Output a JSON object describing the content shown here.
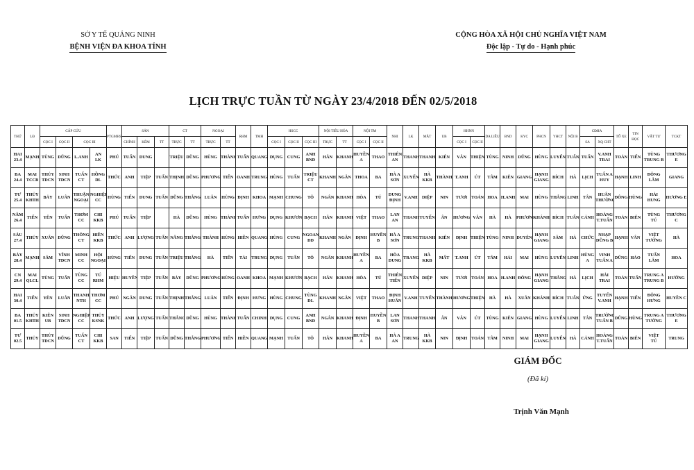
{
  "header_left": {
    "line1": "SỞ Y TẾ QUẢNG NINH",
    "line2": "BỆNH VIỆN ĐA KHOA TỈNH"
  },
  "header_right": {
    "line1": "CỘNG HÒA XÃ HỘI CHỦ NGHĨA VIỆT NAM",
    "line2": "Độc lập - Tự do - Hạnh phúc"
  },
  "title": "LỊCH TRỰC TUẦN TỪ NGÀY 23/4/2018 ĐẾN 02/5/2018",
  "table": {
    "header_top": [
      {
        "label": "THỨ",
        "colspan": 1,
        "rowspan": 2
      },
      {
        "label": "LĐ",
        "colspan": 1,
        "rowspan": 2
      },
      {
        "label": "CẤP CỨU",
        "colspan": 4,
        "rowspan": 1
      },
      {
        "label": "PTGMHS",
        "colspan": 1,
        "rowspan": 2
      },
      {
        "label": "SẢN",
        "colspan": 3,
        "rowspan": 1
      },
      {
        "label": "CT",
        "colspan": 2,
        "rowspan": 1
      },
      {
        "label": "NGOẠI",
        "colspan": 2,
        "rowspan": 1
      },
      {
        "label": "RHM",
        "colspan": 1,
        "rowspan": 2
      },
      {
        "label": "TMH",
        "colspan": 1,
        "rowspan": 2
      },
      {
        "label": "HSCC",
        "colspan": 3,
        "rowspan": 1
      },
      {
        "label": "NỘI TIÊU HÓA",
        "colspan": 2,
        "rowspan": 1
      },
      {
        "label": "NỘI TM",
        "colspan": 2,
        "rowspan": 1
      },
      {
        "label": "NHI",
        "colspan": 1,
        "rowspan": 2
      },
      {
        "label": "LK",
        "colspan": 1,
        "rowspan": 2
      },
      {
        "label": "MẮT",
        "colspan": 1,
        "rowspan": 2
      },
      {
        "label": "UB",
        "colspan": 1,
        "rowspan": 2
      },
      {
        "label": "HHNN",
        "colspan": 2,
        "rowspan": 1
      },
      {
        "label": "DA LIỄU",
        "colspan": 1,
        "rowspan": 2
      },
      {
        "label": "BND",
        "colspan": 1,
        "rowspan": 2
      },
      {
        "label": "KYC",
        "colspan": 1,
        "rowspan": 2
      },
      {
        "label": "PHCN",
        "colspan": 1,
        "rowspan": 2
      },
      {
        "label": "YHCT",
        "colspan": 1,
        "rowspan": 2
      },
      {
        "label": "NỘI B",
        "colspan": 1,
        "rowspan": 2
      },
      {
        "label": "CĐHA",
        "colspan": 2,
        "rowspan": 1
      },
      {
        "label": "TỔ XE",
        "colspan": 1,
        "rowspan": 2
      },
      {
        "label": "TIN\nHỌC",
        "colspan": 1,
        "rowspan": 2
      },
      {
        "label": "VẬT TƯ",
        "colspan": 1,
        "rowspan": 2
      },
      {
        "label": "TCKT",
        "colspan": 1,
        "rowspan": 2
      }
    ],
    "header_sub": [
      {
        "label": "CỌC I",
        "colspan": 1
      },
      {
        "label": "CỌC II",
        "colspan": 1
      },
      {
        "label": "CỌC III",
        "colspan": 2
      },
      {
        "label": "CHÍNH",
        "colspan": 1
      },
      {
        "label": "KÈM",
        "colspan": 1
      },
      {
        "label": "TT",
        "colspan": 1
      },
      {
        "label": "TRỰC",
        "colspan": 1
      },
      {
        "label": "TT",
        "colspan": 1
      },
      {
        "label": "TRỰC",
        "colspan": 1
      },
      {
        "label": "TT",
        "colspan": 1
      },
      {
        "label": "CỌC I",
        "colspan": 1
      },
      {
        "label": "CỌC II",
        "colspan": 1
      },
      {
        "label": "CỌC III",
        "colspan": 1
      },
      {
        "label": "TRỰC",
        "colspan": 1
      },
      {
        "label": "TT",
        "colspan": 1
      },
      {
        "label": "CỌC I",
        "colspan": 1
      },
      {
        "label": "CỌC II",
        "colspan": 1
      },
      {
        "label": "CỌC I",
        "colspan": 1
      },
      {
        "label": "CỌC II",
        "colspan": 1
      },
      {
        "label": "SA",
        "colspan": 1
      },
      {
        "label": "XQ CHT",
        "colspan": 1
      }
    ],
    "rows": [
      [
        "HAI\n23.4",
        "MẠNH",
        "TÙNG",
        "DŨNG",
        "L.ANH",
        "AN\nLK",
        "PHÚ",
        "TUẤN",
        "DUNG",
        "",
        "TRIỆU",
        "DŨNG",
        "HÙNG",
        "THÀNH",
        "TUẤN",
        "QUANG",
        "DỤNG",
        "CUNG",
        "ANH\nBND",
        "HÂN",
        "KHANH",
        "HUYỀN A",
        "THAO",
        "THIÊN\nAN",
        "THANH",
        "THANH",
        "KIÊN",
        "VÂN",
        "THIỆN",
        "TÙNG",
        "NINH",
        "DŨNG",
        "HÙNG",
        "LUYẾN",
        "TUẤN",
        "TUẤN",
        "V.ANH\nTRAI",
        "TOẢN",
        "TIẾN",
        "TÙNG\nTRUNG B",
        "THƯƠNG E"
      ],
      [
        "BA\n24.4",
        "MAI\nTCCB",
        "THỦY\nTDCN",
        "SINH\nTDCN",
        "TUẤN\nCT",
        "HỒNG\nDL",
        "THỨC",
        "ANH",
        "TIỆP",
        "TUẤN",
        "THỊNH",
        "DŨNG",
        "PHƯƠNG",
        "TIẾN",
        "OANH",
        "TRUNG",
        "HÙNG",
        "TUẤN",
        "TRIỆU\nCT",
        "KHANH",
        "NGÂN",
        "THOA",
        "BA",
        "HÀ A\nSƠN",
        "XUYẾN",
        "HÀ\nKKB",
        "THÀNH",
        "T.ANH",
        "ÚT",
        "TÂM",
        "KIÊN",
        "GIANG",
        "HẠNH\nGIANG",
        "BÍCH",
        "HÀ",
        "LỊCH",
        "TUẤN A\nHUY",
        "HẠNH",
        "LINH",
        "ĐÔNG\nLÂM",
        "GIANG"
      ],
      [
        "TƯ\n25.4",
        "THỦY\nKHTH",
        "BẢY",
        "LUÂN",
        "THUẬN\nNGOẠI",
        "NGHIỆP\nCC",
        "HÙNG",
        "TIẾN",
        "DUNG",
        "TUẤN",
        "DŨNG",
        "THẮNG",
        "LUÂN",
        "HÙNG",
        "ĐỊNH",
        "KHOA",
        "MẠNH",
        "CHUNG",
        "TÔ",
        "NGÂN",
        "KHANH",
        "HÒA",
        "TÚ",
        "DUNG\nĐỊNH",
        "V.ANH",
        "DIỆP",
        "NIN",
        "TƯƠI",
        "TOẢN",
        "HOA",
        "H.ANH",
        "MAI",
        "HÙNG",
        "THẮNG",
        "LINH",
        "TÂN",
        "HUÂN\nTHƯỜNG",
        "ĐÔNG",
        "HÙNG",
        "HẢI\nHUNG",
        "HƯƠNG E"
      ],
      [
        "NĂM\n26.4",
        "TIẾN",
        "YÊN",
        "TUẤN",
        "THƠM\nCC",
        "CHI\nKKB",
        "PHÚ",
        "TUẤN",
        "TIỆP",
        "",
        "HÀ",
        "DŨNG",
        "HÙNG",
        "THÀNH",
        "TUẤN",
        "HƯNG",
        "DỤNG",
        "KHƯƠNG",
        "BẠCH",
        "HÂN",
        "KHANH",
        "VIỆT",
        "THAO",
        "LAN\nAN",
        "THANH",
        "TUYẾN",
        "ÂN",
        "HƯƠNG",
        "VÂN",
        "HÀ",
        "HÀ",
        "PHƯƠNG",
        "KHÁNH",
        "BÍCH",
        "TUẤN",
        "CẢNH",
        "HOÀNG\nT.TUẤN",
        "TOẢN",
        "BIÊN",
        "TÙNG\nTÚ",
        "THƯƠNG C"
      ],
      [
        "SÁU\n27.4",
        "THỦY",
        "XUÂN",
        "DŨNG",
        "THÔNG\nCT",
        "HIỀN\nKKB",
        "THỨC",
        "ANH",
        "LƯỢNG",
        "TUẤN",
        "NĂNG",
        "THẮNG",
        "THÀNH",
        "HÙNG",
        "HIỀN",
        "QUANG",
        "HÙNG",
        "CUNG",
        "NGOAN\nDD",
        "KHANH",
        "NGÂN",
        "ĐỊNH",
        "HUYỀN\nB",
        "HÀ A\nSƠN",
        "TRUNG",
        "THANH",
        "KIÊN",
        "ĐỊNH",
        "THIỆN",
        "TÙNG",
        "NINH",
        "DUYÊN",
        "HẠNH\nGIANG",
        "SÂM",
        "HÀ",
        "CHỨC",
        "NHẠP\nDŨNG B",
        "HẠNH",
        "VÂN",
        "VIỆT\nTƯỜNG",
        "HÀ"
      ],
      [
        "BẢY\n28.4",
        "MẠNH",
        "SÂM",
        "VĨNH\nTDCN",
        "MINH\nCC",
        "HỘI\nNGOẠI",
        "HÙNG",
        "TIẾN",
        "DUNG",
        "TUẤN",
        "TRIỆU",
        "THẮNG",
        "HÀ",
        "TIẾN",
        "TÀI",
        "TRUNG",
        "DỤNG",
        "TUẤN",
        "TÔ",
        "NGÂN",
        "KHANH",
        "HUYỀN\nA",
        "BA",
        "HÒA\nDUNG",
        "TRANG",
        "HÀ\nKKB",
        "MẤT",
        "T.ANH",
        "ÚT",
        "TÂM",
        "HẢI",
        "MAI",
        "HÙNG",
        "LUYẾN",
        "LINH",
        "HÙNG A",
        "VINH\nTUẤN A",
        "DŨNG",
        "HẢO",
        "TUẤN\nLÂM",
        "HOA"
      ],
      [
        "CN\n29.4",
        "MAI\nQLCL",
        "TÙNG",
        "TUẤN",
        "TÙNG\nCC",
        "TÚ\nRHM",
        "HIỆU",
        "HUYỀN",
        "TIỆP",
        "TUẤN",
        "BẢY",
        "DŨNG",
        "PHƯƠNG",
        "HÙNG",
        "OANH",
        "KHOA",
        "MẠNH",
        "KHƯƠNG",
        "BẠCH",
        "HÂN",
        "KHANH",
        "HÒA",
        "TÚ",
        "THIÊN\nTIẾN",
        "XUYẾN",
        "DIỆP",
        "NIN",
        "TƯƠI",
        "TOẢN",
        "HOA",
        "H.ANH",
        "ĐÔNG",
        "HẠNH\nGIANG",
        "THẮNG",
        "HÀ",
        "LỊCH",
        "HẢI\nTRAI",
        "TOẢN",
        "TUẤN",
        "TRUNG A\nTRUNG B",
        "HƯỜNG"
      ],
      [
        "HAI\n30.4",
        "TIẾN",
        "YÊN",
        "LUÂN",
        "THANH\nNTH",
        "THƠM\nCC",
        "PHÚ",
        "NGÂN",
        "DUNG",
        "TUẤN",
        "THỊNH",
        "THẮNG",
        "LUÂN",
        "TIẾN",
        "ĐỊNH",
        "HƯNG",
        "HÙNG",
        "CHUNG",
        "TÙNG\nDL",
        "KHANH",
        "NGÂN",
        "VIỆT",
        "THAO",
        "ĐỊNH\nHUÂN",
        "V.ANH",
        "TUYẾN",
        "THÀNH",
        "HƯƠNG",
        "THIỆN",
        "HÀ",
        "HÀ",
        "XUÂN",
        "KHÁNH",
        "BÍCH",
        "TUẤN",
        "ỨNG",
        "TUYẾN\nV.ANH",
        "HẠNH",
        "TIẾN",
        "ĐÔNG\nHƯNG",
        "HUYỀN C"
      ],
      [
        "BA\n01.5",
        "THỦY\nKHTH",
        "KIÊN\nUB",
        "SINH\nTDCN",
        "NGHIỆP\nCC",
        "THỦY\nKSNK",
        "THỨC",
        "ANH",
        "LƯỢNG",
        "TUẤN",
        "THẮNG",
        "DŨNG",
        "HÙNG",
        "THÀNH",
        "TUẤN",
        "CHINH",
        "DỤNG",
        "CUNG",
        "ANH\nBND",
        "NGÂN",
        "KHANH",
        "ĐỊNH",
        "HUYỀN\nB",
        "LAN\nSƠN",
        "THANH",
        "THANH",
        "ÂN",
        "VÂN",
        "ÚT",
        "TÙNG",
        "KIÊN",
        "GIANG",
        "HÙNG",
        "LUYẾN",
        "LINH",
        "TÂN",
        "TRƯỜNG\nTUẤN B",
        "DŨNG",
        "HÙNG",
        "TRUNG A\nTƯỜNG",
        "THƯƠNG E"
      ],
      [
        "TƯ\n02.5",
        "THỦY",
        "THỦY\nTDCN",
        "DŨNG",
        "TUẤN\nCT",
        "CHI\nKKB",
        "SAN",
        "TIẾN",
        "TIỆP",
        "TUẤN",
        "DŨNG",
        "THẮNG",
        "PHƯƠNG",
        "TIẾN",
        "HIỀN",
        "QUANG",
        "MẠNH",
        "TUẤN",
        "TÔ",
        "HÂN",
        "KHANH",
        "HUYỀN\nA",
        "BA",
        "HÀ A\nAN",
        "TRUNG",
        "HÀ\nKKB",
        "NIN",
        "ĐỊNH",
        "TOẢN",
        "TÂM",
        "NINH",
        "MAI",
        "HẠNH\nGIANG",
        "LUYẾN",
        "HÀ",
        "CẢNH",
        "HOÀNG\nT.TUẤN",
        "TOẢN",
        "BIÊN",
        "VIỆT\nTÚ",
        "TRUNG"
      ]
    ]
  },
  "signature": {
    "role": "GIÁM ĐỐC",
    "note": "(Đã kí)",
    "name": "Trịnh Văn Mạnh"
  }
}
